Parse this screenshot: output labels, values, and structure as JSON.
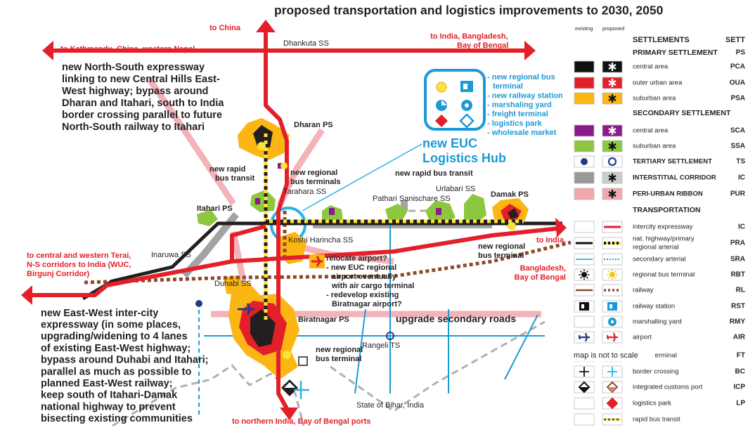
{
  "title": "proposed transportation and logistics improvements to 2030, 2050",
  "directions": {
    "north": "to China",
    "west_top": "to Kathmandu, China, western Nepal",
    "east_top": [
      "to India, Bangladesh,",
      "Bay of Bengal"
    ],
    "west_bottom": [
      "to central and western Terai,",
      "N-S corridors to India (WUC,",
      "Birgunj Corridor)"
    ],
    "east_bottom": [
      "to India,",
      "Bangladesh,",
      "Bay of Bengal"
    ],
    "south": "to northern India, Bay of Bengal ports"
  },
  "settlements": {
    "dhankuta": "Dhankuta SS",
    "dharan": "Dharan PS",
    "tarahara": "Tarahara SS",
    "urlabari": "Urlabari SS",
    "pathari": "Pathari Sanischare SS",
    "damak": "Damak PS",
    "itahari": "Itahari PS",
    "inaruwa": "Inaruwa SS",
    "koshi": "Koshi Harincha SS",
    "duhabi": "Duhabi SS",
    "biratnagar": "Biratnagar PS",
    "rangeli": "Rangeli TS",
    "bihar": "State of Bihar, India"
  },
  "notes": {
    "north_south": [
      "new North-South expressway",
      "linking to new Central Hills East-",
      "West highway; bypass around",
      "Dharan and Itahari, south to India",
      "border crossing parallel to future",
      "North-South railway to Itahari"
    ],
    "east_west": [
      "new East-West inter-city",
      "expressway (in some places,",
      "upgrading/widening to 4 lanes",
      "of existing East-West highway;",
      "bypass around Duhabi and Itahari;",
      "parallel as much as possible to",
      "planned East-West railway;",
      "keep south of Itahari-Damak",
      "national highway to prevent",
      "bisecting existing communities"
    ],
    "airport": [
      "relocate airport?",
      "- new EUC regional",
      "airport eventually",
      "with air cargo terminal",
      "- redevelop existing",
      "Biratnagar airport?"
    ],
    "rapid_bus_west": [
      "new rapid",
      "bus transit"
    ],
    "bus_terminals_north": [
      "new regional",
      "bus terminals"
    ],
    "rapid_bus_east": "new rapid bus transit",
    "bus_terminal_east": [
      "new regional",
      "bus terminal"
    ],
    "bus_terminal_south": [
      "new regional",
      "bus terminal"
    ],
    "secondary_roads": "upgrade secondary roads",
    "scale": "map is not to scale"
  },
  "hub": {
    "title": [
      "new EUC",
      "Logistics Hub"
    ],
    "items": [
      "- new regional bus",
      "terminal",
      "- new railway station",
      "- marshaling yard",
      "- freight terminal",
      "- logistics park",
      "- wholesale market"
    ]
  },
  "legend": {
    "columns": [
      "existing",
      "proposed"
    ],
    "title": "SETTLEMENTS",
    "code_title": "SETT",
    "rows": [
      {
        "heading": "PRIMARY SETTLEMENT",
        "code": "PS"
      },
      {
        "label": "central area",
        "code": "PCA"
      },
      {
        "label": "outer urban area",
        "code": "OUA"
      },
      {
        "label": "suburban area",
        "code": "PSA"
      },
      {
        "heading": "SECONDARY SETTLEMENT"
      },
      {
        "label": "central area",
        "code": "SCA"
      },
      {
        "label": "suburban area",
        "code": "SSA"
      },
      {
        "label": "TERTIARY SETTLEMENT",
        "code": "TS"
      },
      {
        "label": "INTERSTITIAL CORRIDOR",
        "code": "IC"
      },
      {
        "label": "PERI-URBAN RIBBON",
        "code": "PUR"
      },
      {
        "heading": "TRANSPORTATION"
      },
      {
        "label": "intercity expressway",
        "code": "IC"
      },
      {
        "label": [
          "nat. highway/primary",
          "regional arterial"
        ],
        "code": "PRA"
      },
      {
        "label": "secondary arterial",
        "code": "SRA"
      },
      {
        "label": "regional bus terminal",
        "code": "RBT"
      },
      {
        "label": "railway",
        "code": "RL"
      },
      {
        "label": "railway station",
        "code": "RST"
      },
      {
        "label": "marshalling yard",
        "code": "RMY"
      },
      {
        "label": "airport",
        "code": "AIR"
      },
      {
        "label": "freight terminal",
        "code": "FT"
      },
      {
        "label": "border crossing",
        "code": "BC"
      },
      {
        "label": "integrated customs port",
        "code": "ICP"
      },
      {
        "label": "logistics park",
        "code": "LP"
      },
      {
        "label": "rapid bus transit"
      }
    ]
  }
}
